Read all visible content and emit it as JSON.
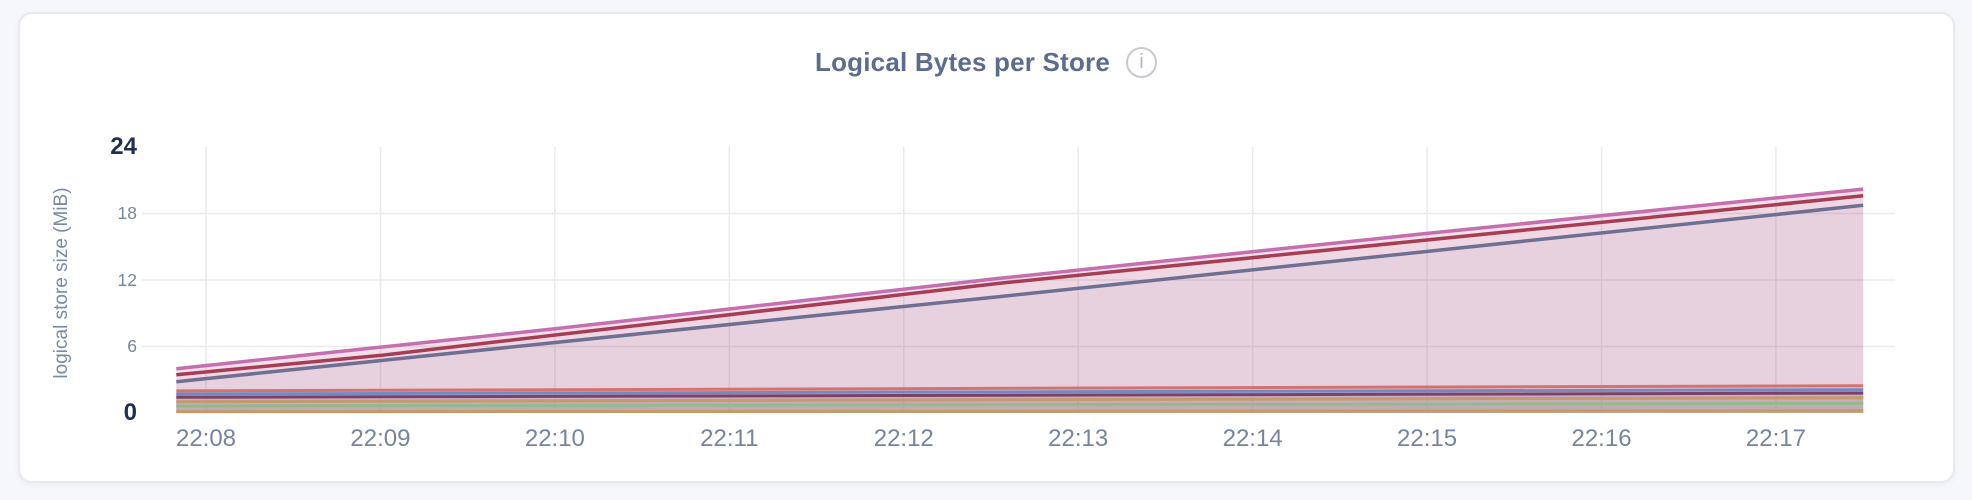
{
  "page": {
    "background": "#f5f7fa"
  },
  "card": {
    "background": "#ffffff",
    "border_color": "#e9eaee"
  },
  "header": {
    "title": "Logical Bytes per Store",
    "info_icon_glyph": "i",
    "title_color": "#5b6c8e"
  },
  "chart_data": {
    "type": "area",
    "title": "Logical Bytes per Store",
    "ylabel": "logical store size (MiB)",
    "ylim": [
      0,
      24
    ],
    "yticks": [
      0,
      6,
      12,
      18,
      24
    ],
    "grid_h_values": [
      6,
      12,
      18
    ],
    "grid_color": "#e9eaec",
    "x_ticks": [
      "22:08",
      "22:09",
      "22:10",
      "22:11",
      "22:12",
      "22:13",
      "22:14",
      "22:15",
      "22:16",
      "22:17"
    ],
    "x_start_min": -0.17,
    "x_end_min": 9.5,
    "legend": "none",
    "series": [
      {
        "id": "series-1",
        "color": "#c46fb0",
        "fill_color": "#c0689e",
        "fill_opacity": 0.21,
        "points": [
          [
            -0.17,
            4.0
          ],
          [
            2,
            7.6
          ],
          [
            4.55,
            12.15
          ],
          [
            7,
            16.2
          ],
          [
            9.5,
            20.2
          ]
        ]
      },
      {
        "id": "series-2",
        "color": "#a63d55",
        "fill_color": "#a63d55",
        "fill_opacity": 0.04,
        "points": [
          [
            -0.17,
            3.46
          ],
          [
            1.0,
            5.2
          ],
          [
            1.35,
            5.85
          ],
          [
            4.55,
            11.7
          ],
          [
            9.5,
            19.6
          ]
        ]
      },
      {
        "id": "series-3",
        "color": "#6f6e93",
        "fill_color": "#6f6e93",
        "fill_opacity": 0.06,
        "points": [
          [
            -0.17,
            2.82
          ],
          [
            4.55,
            10.5
          ],
          [
            9.5,
            18.74
          ]
        ]
      },
      {
        "id": "series-4",
        "color": "#d3736f",
        "fill_color": "#d3736f",
        "fill_opacity": 0.12,
        "points": [
          [
            -0.17,
            1.99
          ],
          [
            9.5,
            2.46
          ]
        ]
      },
      {
        "id": "series-5",
        "color": "#7589c1",
        "fill_color": "#7589c1",
        "fill_opacity": 0.12,
        "points": [
          [
            -0.17,
            1.71
          ],
          [
            9.5,
            2.1
          ]
        ]
      },
      {
        "id": "series-6",
        "color": "#7c4168",
        "fill_color": "#7c4168",
        "fill_opacity": 0.12,
        "points": [
          [
            -0.17,
            1.42
          ],
          [
            9.5,
            1.8
          ]
        ]
      },
      {
        "id": "series-7",
        "color": "#c59a6c",
        "fill_color": "#c59a6c",
        "fill_opacity": 0.12,
        "points": [
          [
            -0.17,
            1.02
          ],
          [
            9.5,
            1.38
          ]
        ]
      },
      {
        "id": "series-8",
        "color": "#92b992",
        "fill_color": "#92b992",
        "fill_opacity": 0.12,
        "points": [
          [
            -0.17,
            0.63
          ],
          [
            9.5,
            0.87
          ]
        ]
      },
      {
        "id": "series-9",
        "color": "#c49a66",
        "fill_color": "#c49a66",
        "fill_opacity": 0.12,
        "points": [
          [
            -0.17,
            0.12
          ],
          [
            9.5,
            0.2
          ]
        ]
      }
    ]
  }
}
